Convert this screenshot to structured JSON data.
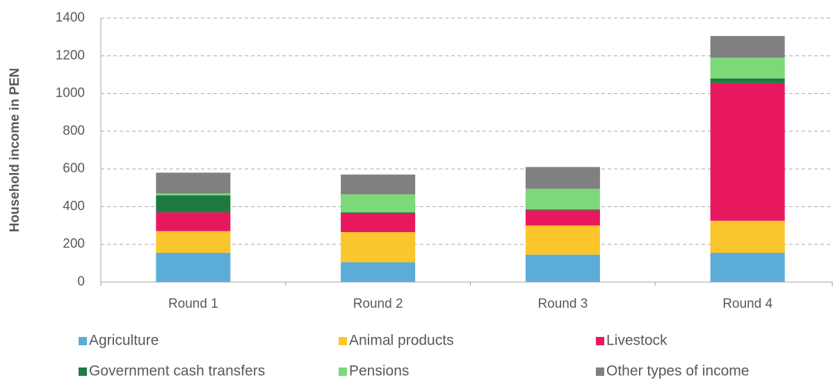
{
  "chart_data": {
    "type": "stacked_bar",
    "y_label": "Household income in PEN",
    "categories": [
      "Round 1",
      "Round 2",
      "Round 3",
      "Round 4"
    ],
    "series": [
      {
        "name": "Agriculture",
        "color": "#5badd8",
        "values": [
          155,
          105,
          145,
          155
        ]
      },
      {
        "name": "Animal products",
        "color": "#fbc52c",
        "values": [
          115,
          160,
          155,
          170
        ]
      },
      {
        "name": "Livestock",
        "color": "#e8185f",
        "values": [
          100,
          100,
          80,
          730
        ]
      },
      {
        "name": "Government cash transfers",
        "color": "#1e7a40",
        "values": [
          90,
          5,
          5,
          25
        ]
      },
      {
        "name": "Pensions",
        "color": "#7dd87a",
        "values": [
          10,
          95,
          110,
          110
        ]
      },
      {
        "name": "Other types of income",
        "color": "#808080",
        "values": [
          110,
          105,
          115,
          115
        ]
      }
    ],
    "ylim": [
      0,
      1400
    ],
    "yticks": [
      0,
      200,
      400,
      600,
      800,
      1000,
      1200,
      1400
    ],
    "grid": true,
    "legend": "bottom"
  }
}
